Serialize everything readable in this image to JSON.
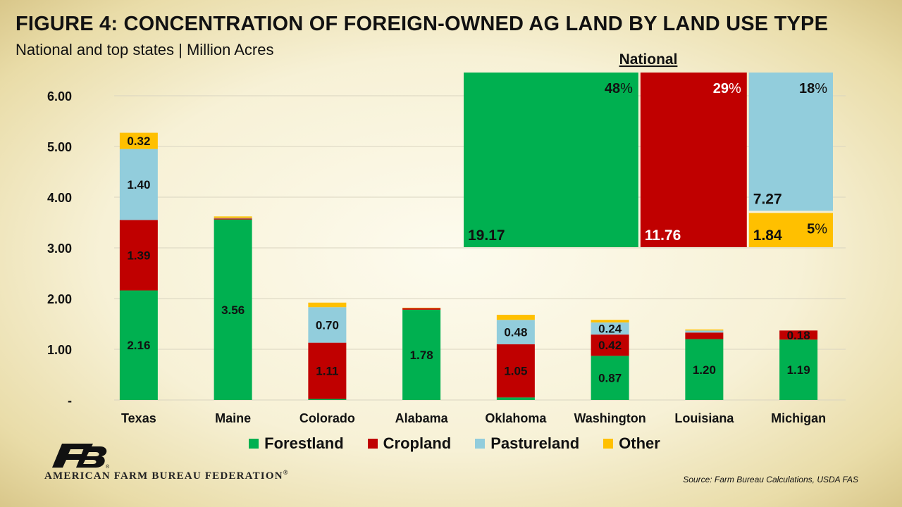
{
  "header": {
    "title": "FIGURE 4: CONCENTRATION OF FOREIGN-OWNED AG LAND BY LAND USE  TYPE",
    "subtitle": "National and top states | Million Acres"
  },
  "colors": {
    "forestland": "#00b050",
    "cropland": "#c00000",
    "pastureland": "#92cddc",
    "other": "#ffc000"
  },
  "legend": [
    {
      "key": "forestland",
      "label": "Forestland"
    },
    {
      "key": "cropland",
      "label": "Cropland"
    },
    {
      "key": "pastureland",
      "label": "Pastureland"
    },
    {
      "key": "other",
      "label": "Other"
    }
  ],
  "chart_data": [
    {
      "type": "bar",
      "stacked": true,
      "title": "",
      "xlabel": "",
      "ylabel": "",
      "ylim": [
        0,
        6.5
      ],
      "yticks": [
        {
          "value": 0,
          "label": "-"
        },
        {
          "value": 1,
          "label": "1.00"
        },
        {
          "value": 2,
          "label": "2.00"
        },
        {
          "value": 3,
          "label": "3.00"
        },
        {
          "value": 4,
          "label": "4.00"
        },
        {
          "value": 5,
          "label": "5.00"
        },
        {
          "value": 6,
          "label": "6.00"
        }
      ],
      "grid": true,
      "legend_position": "bottom",
      "categories": [
        "Texas",
        "Maine",
        "Colorado",
        "Alabama",
        "Oklahoma",
        "Washington",
        "Louisiana",
        "Michigan"
      ],
      "series": [
        {
          "name": "Forestland",
          "key": "forestland",
          "values": [
            2.16,
            3.56,
            0.02,
            1.78,
            0.05,
            0.87,
            1.2,
            1.19
          ],
          "labels": [
            "2.16",
            "3.56",
            "",
            "1.78",
            "",
            "0.87",
            "1.20",
            "1.19"
          ]
        },
        {
          "name": "Cropland",
          "key": "cropland",
          "values": [
            1.39,
            0.02,
            1.11,
            0.03,
            1.05,
            0.42,
            0.13,
            0.18
          ],
          "labels": [
            "1.39",
            "",
            "1.11",
            "",
            "1.05",
            "0.42",
            "",
            "0.18"
          ]
        },
        {
          "name": "Pastureland",
          "key": "pastureland",
          "values": [
            1.4,
            0.01,
            0.7,
            0.0,
            0.48,
            0.24,
            0.04,
            0.0
          ],
          "labels": [
            "1.40",
            "",
            "0.70",
            "",
            "0.48",
            "0.24",
            "",
            ""
          ]
        },
        {
          "name": "Other",
          "key": "other",
          "values": [
            0.32,
            0.03,
            0.09,
            0.01,
            0.1,
            0.05,
            0.02,
            0.0
          ],
          "labels": [
            "0.32",
            "",
            "",
            "",
            "",
            "",
            "",
            ""
          ]
        }
      ]
    },
    {
      "type": "treemap",
      "title": "National",
      "items": [
        {
          "key": "forestland",
          "value": 19.17,
          "value_label": "19.17",
          "pct_num": "48",
          "pct_sym": "%"
        },
        {
          "key": "cropland",
          "value": 11.76,
          "value_label": "11.76",
          "pct_num": "29",
          "pct_sym": "%"
        },
        {
          "key": "pastureland",
          "value": 7.27,
          "value_label": "7.27",
          "pct_num": "18",
          "pct_sym": "%"
        },
        {
          "key": "other",
          "value": 1.84,
          "value_label": "1.84",
          "pct_num": "5",
          "pct_sym": "%"
        }
      ]
    }
  ],
  "branding": {
    "logo_text": "FB",
    "org_name": "AMERICAN FARM BUREAU FEDERATION",
    "org_mark": "®",
    "source": "Source: Farm Bureau Calculations, USDA FAS"
  }
}
